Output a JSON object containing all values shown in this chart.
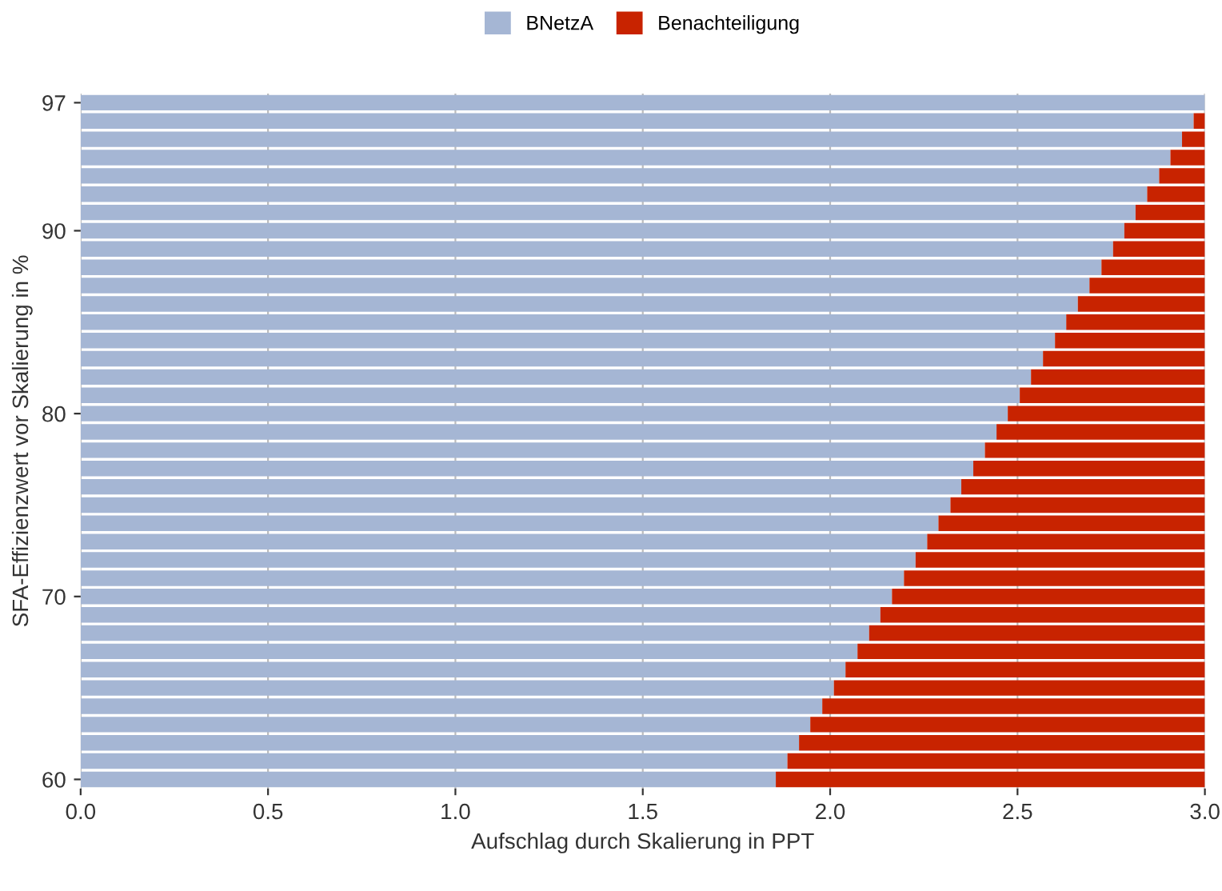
{
  "chart_data": {
    "type": "bar",
    "orientation": "horizontal",
    "stacked": true,
    "xlabel": "Aufschlag durch Skalierung in PPT",
    "ylabel": "SFA-Effizienzwert vor Skalierung in %",
    "x": [
      60,
      61,
      62,
      63,
      64,
      65,
      66,
      67,
      68,
      69,
      70,
      71,
      72,
      73,
      74,
      75,
      76,
      77,
      78,
      79,
      80,
      81,
      82,
      83,
      84,
      85,
      86,
      87,
      88,
      89,
      90,
      91,
      92,
      93,
      94,
      95,
      96,
      97
    ],
    "series": [
      {
        "name": "BNetzA",
        "color": "#a5b6d4",
        "values": [
          1.855,
          1.886,
          1.917,
          1.947,
          1.979,
          2.01,
          2.041,
          2.073,
          2.104,
          2.134,
          2.165,
          2.197,
          2.228,
          2.259,
          2.289,
          2.321,
          2.35,
          2.382,
          2.413,
          2.444,
          2.474,
          2.506,
          2.536,
          2.568,
          2.6,
          2.63,
          2.661,
          2.692,
          2.724,
          2.755,
          2.785,
          2.815,
          2.846,
          2.878,
          2.908,
          2.939,
          2.97,
          3.0
        ]
      },
      {
        "name": "Benachteiligung",
        "color": "#c82300",
        "values": [
          1.145,
          1.114,
          1.083,
          1.053,
          1.021,
          0.99,
          0.959,
          0.927,
          0.896,
          0.866,
          0.835,
          0.803,
          0.772,
          0.741,
          0.711,
          0.679,
          0.65,
          0.618,
          0.587,
          0.556,
          0.526,
          0.494,
          0.464,
          0.432,
          0.4,
          0.37,
          0.339,
          0.308,
          0.276,
          0.245,
          0.215,
          0.185,
          0.154,
          0.122,
          0.092,
          0.061,
          0.03,
          0.0
        ]
      }
    ],
    "xlim": [
      0,
      3
    ],
    "xticks": [
      {
        "value": 0,
        "label": "0.0"
      },
      {
        "value": 0.5,
        "label": "0.5"
      },
      {
        "value": 1,
        "label": "1.0"
      },
      {
        "value": 1.5,
        "label": "1.5"
      },
      {
        "value": 2,
        "label": "2.0"
      },
      {
        "value": 2.5,
        "label": "2.5"
      },
      {
        "value": 3,
        "label": "3.0"
      }
    ],
    "ylim": [
      59.5,
      97.5
    ],
    "yticks": [
      60,
      70,
      80,
      90,
      97
    ],
    "grid": "x",
    "legend": "top"
  }
}
